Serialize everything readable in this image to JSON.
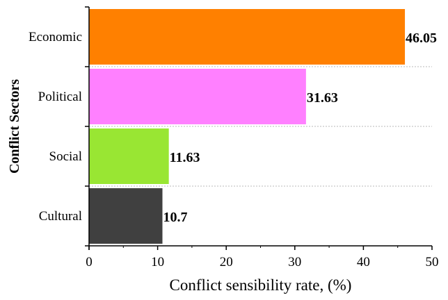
{
  "chart_data": {
    "type": "bar",
    "orientation": "horizontal",
    "categories": [
      "Economic",
      "Political",
      "Social",
      "Cultural"
    ],
    "values": [
      46.05,
      31.63,
      11.63,
      10.7
    ],
    "value_labels": [
      "46.05",
      "31.63",
      "11.63",
      "10.7"
    ],
    "colors": [
      "#ff8000",
      "#ff80ff",
      "#99e633",
      "#404040"
    ],
    "title": "",
    "xlabel": "Conflict sensibility rate, (%)",
    "ylabel": "Conflict Sectors",
    "xlim": [
      0,
      50
    ],
    "xticks": [
      0,
      10,
      20,
      30,
      40,
      50
    ],
    "grid": "horizontal dotted separators",
    "legend": "none"
  }
}
